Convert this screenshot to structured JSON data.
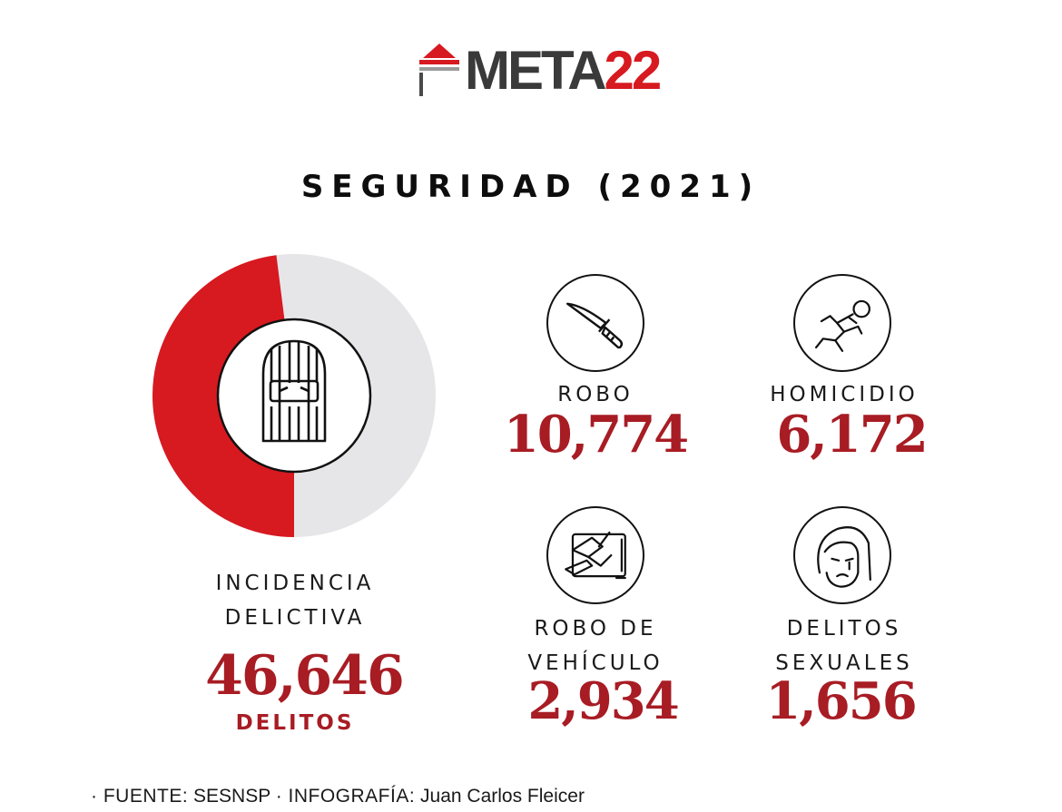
{
  "logo": {
    "text_main": "META",
    "text_accent": "22"
  },
  "title": "SEGURIDAD (2021)",
  "colors": {
    "accent": "#d71920",
    "number": "#a81c24",
    "donut_rest": "#e6e6e8"
  },
  "total": {
    "label_line1": "INCIDENCIA",
    "label_line2": "DELICTIVA",
    "value": "46,646",
    "unit": "DELITOS",
    "icon": "prisoner-behind-bars-icon"
  },
  "stats": [
    {
      "label_line1": "ROBO",
      "label_line2": "",
      "value": "10,774",
      "icon": "knife-icon"
    },
    {
      "label_line1": "HOMICIDIO",
      "label_line2": "",
      "value": "6,172",
      "icon": "body-outline-icon"
    },
    {
      "label_line1": "ROBO DE",
      "label_line2": "VEHÍCULO",
      "value": "2,934",
      "icon": "car-theft-icon"
    },
    {
      "label_line1": "DELITOS",
      "label_line2": "SEXUALES",
      "value": "1,656",
      "icon": "crying-face-icon"
    }
  ],
  "chart_data": {
    "type": "pie",
    "total": 46646,
    "categories": [
      "ROBO",
      "HOMICIDIO",
      "ROBO DE VEHÍCULO",
      "DELITOS SEXUALES"
    ],
    "values": [
      10774,
      6172,
      2934,
      1656
    ],
    "highlighted_fraction": 0.48
  },
  "footer": {
    "source_key": "· FUENTE:",
    "source_value": "SESNSP",
    "credit_key": "· INFOGRAFÍA:",
    "credit_value": "Juan Carlos Fleicer"
  }
}
